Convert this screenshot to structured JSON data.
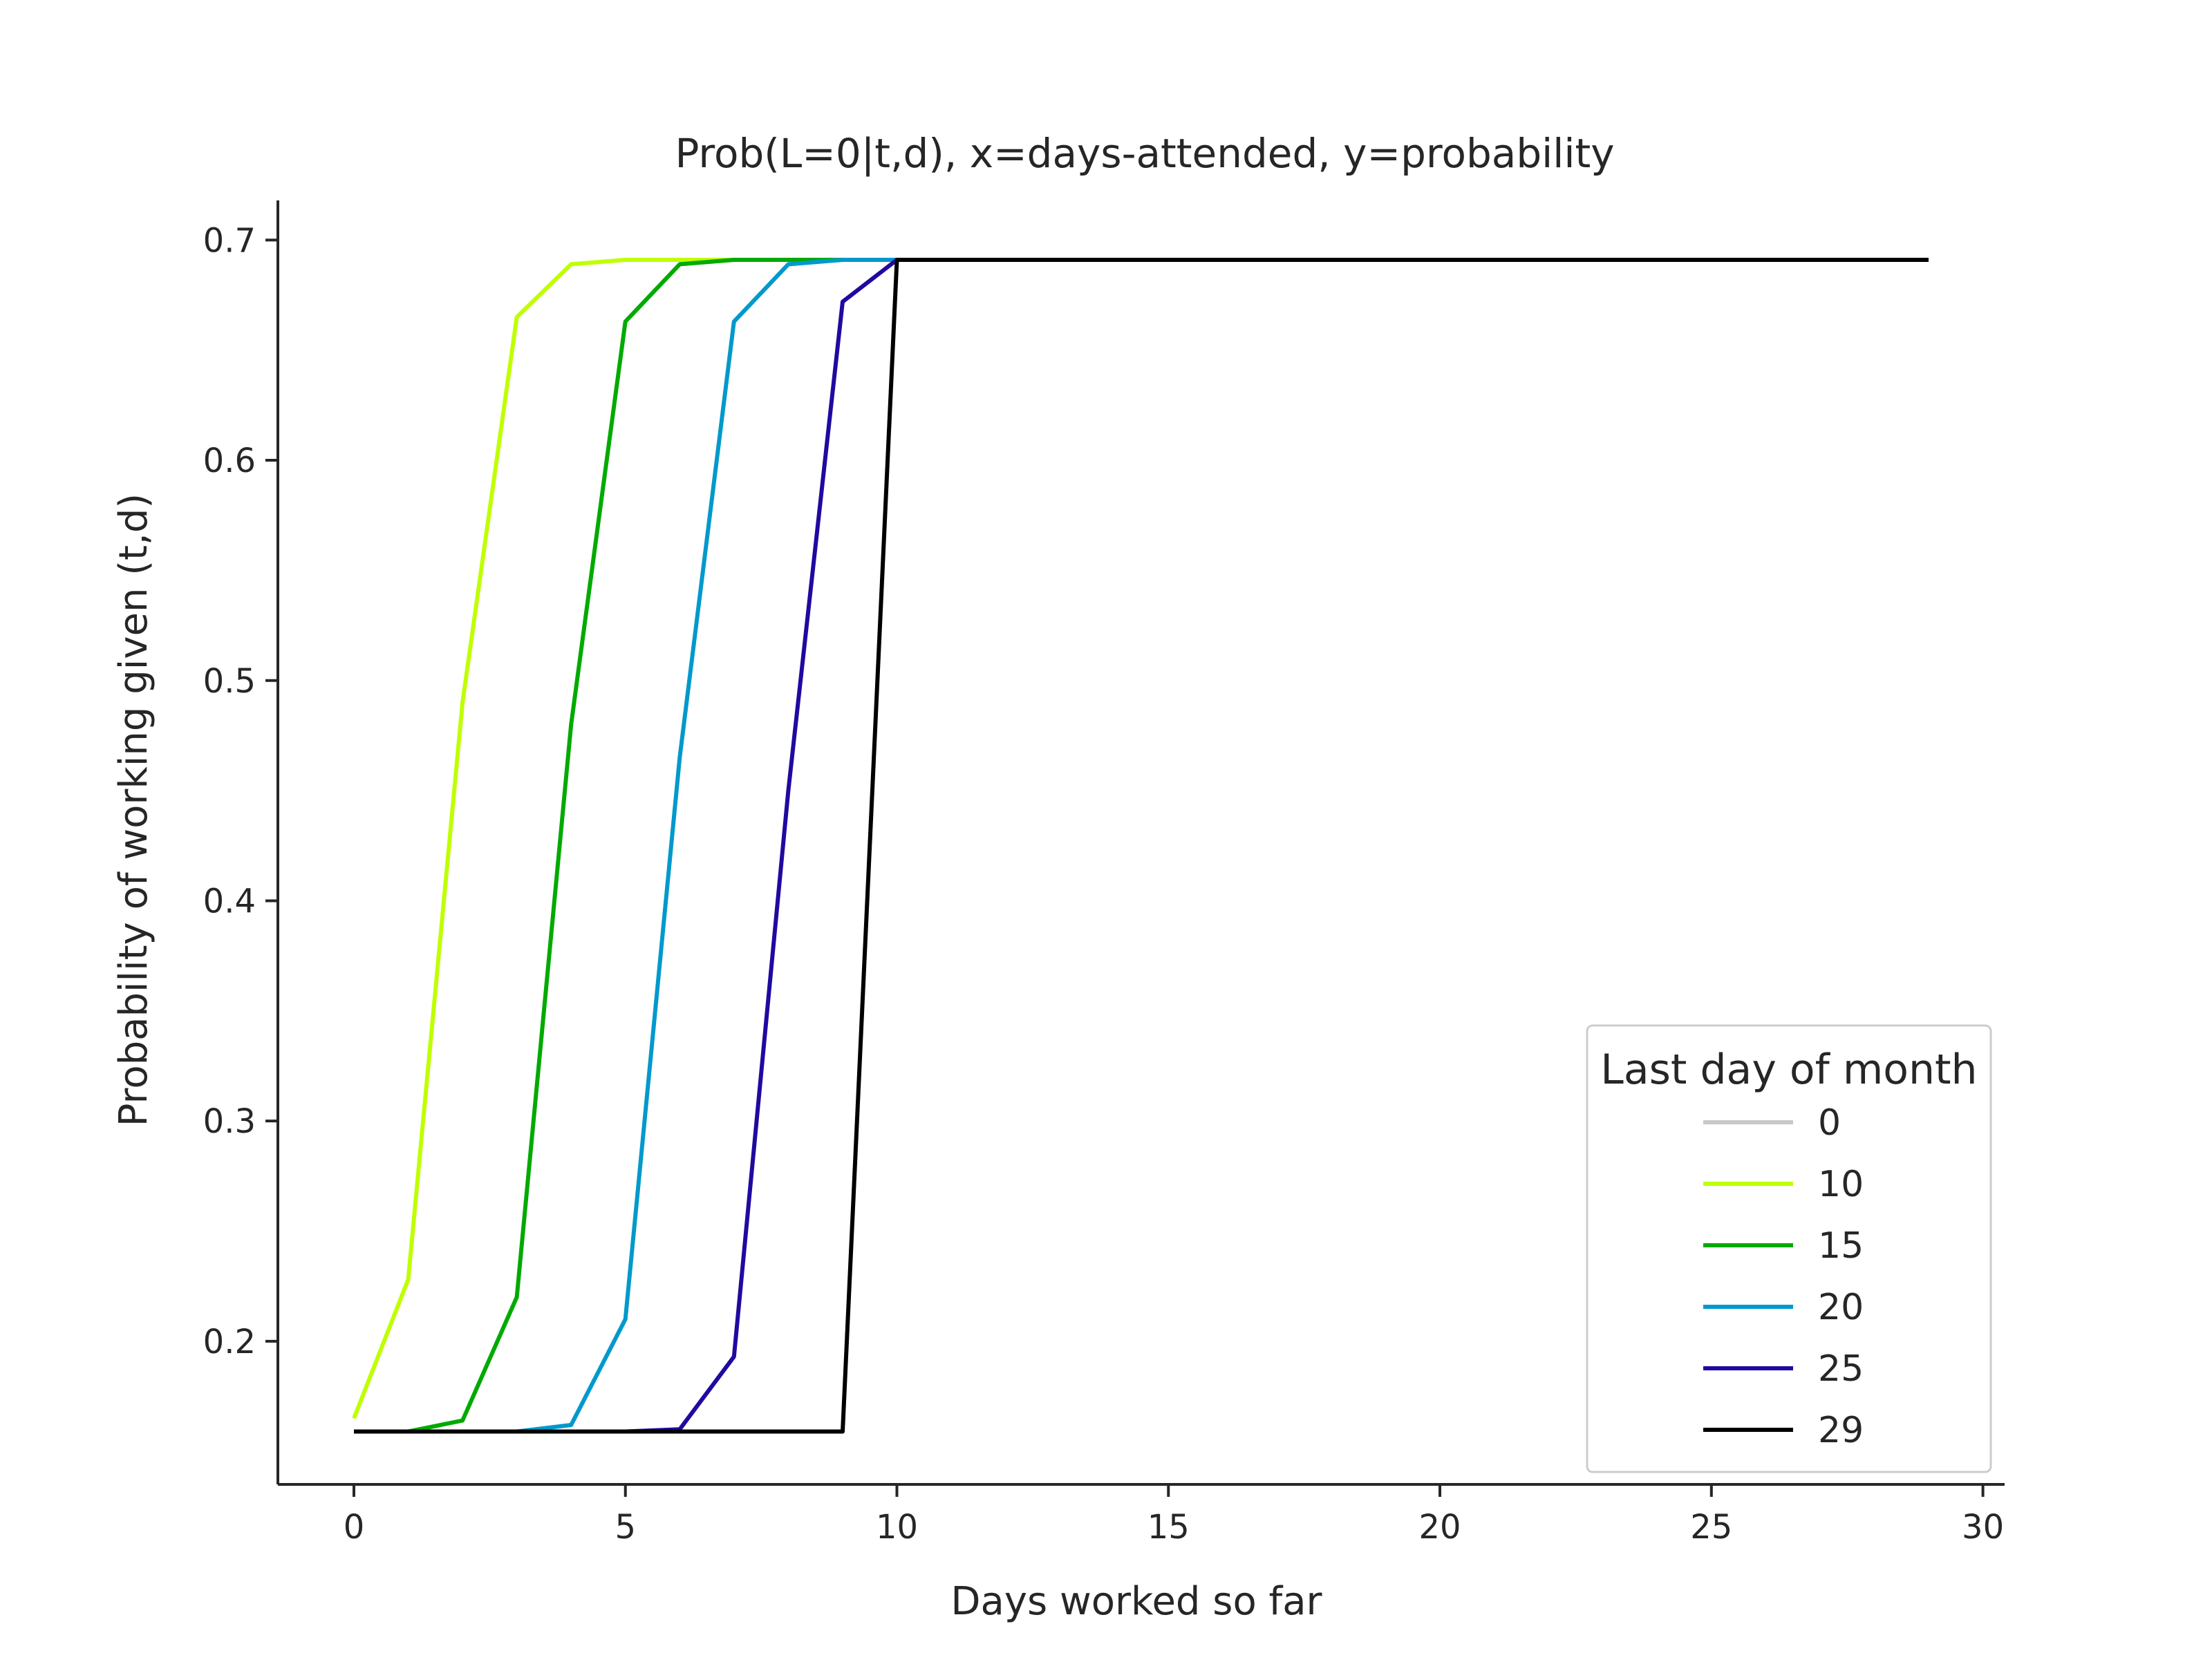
{
  "chart_data": {
    "type": "line",
    "title": "Prob(L=0|t,d), x=days-attended, y=probability",
    "xlabel": "Days worked so far",
    "ylabel": "Probability of working given (t,d)",
    "xlim": [
      -1.4,
      30.4
    ],
    "ylim": [
      0.135,
      0.718
    ],
    "xticks": [
      0,
      5,
      10,
      15,
      20,
      25,
      30
    ],
    "yticks": [
      0.2,
      0.3,
      0.4,
      0.5,
      0.6,
      0.7
    ],
    "xtick_labels": [
      "0",
      "5",
      "10",
      "15",
      "20",
      "25",
      "30"
    ],
    "ytick_labels": [
      "0.2",
      "0.3",
      "0.4",
      "0.5",
      "0.6",
      "0.7"
    ],
    "grid": false,
    "legend": {
      "title": "Last day of month",
      "placement": "bottom-right"
    },
    "series": [
      {
        "name": "0",
        "color": "#c8c8c8",
        "x": [],
        "y": []
      },
      {
        "name": "10",
        "color": "#bfff00",
        "x": [
          0,
          1,
          2,
          3,
          4,
          5,
          6,
          7,
          8,
          9,
          10,
          11,
          12,
          13,
          14,
          15,
          16,
          17,
          18,
          19,
          20,
          21,
          22,
          23,
          24,
          25,
          26,
          27,
          28,
          29
        ],
        "y": [
          0.165,
          0.228,
          0.49,
          0.665,
          0.689,
          0.691,
          0.691,
          0.691,
          0.691,
          0.691,
          0.691,
          0.691,
          0.691,
          0.691,
          0.691,
          0.691,
          0.691,
          0.691,
          0.691,
          0.691,
          0.691,
          0.691,
          0.691,
          0.691,
          0.691,
          0.691,
          0.691,
          0.691,
          0.691,
          0.691
        ]
      },
      {
        "name": "15",
        "color": "#00aa00",
        "x": [
          0,
          1,
          2,
          3,
          4,
          5,
          6,
          7,
          8,
          9,
          10,
          11,
          12,
          13,
          14,
          15,
          16,
          17,
          18,
          19,
          20,
          21,
          22,
          23,
          24,
          25,
          26,
          27,
          28,
          29
        ],
        "y": [
          0.159,
          0.159,
          0.164,
          0.22,
          0.48,
          0.663,
          0.689,
          0.691,
          0.691,
          0.691,
          0.691,
          0.691,
          0.691,
          0.691,
          0.691,
          0.691,
          0.691,
          0.691,
          0.691,
          0.691,
          0.691,
          0.691,
          0.691,
          0.691,
          0.691,
          0.691,
          0.691,
          0.691,
          0.691,
          0.691
        ]
      },
      {
        "name": "20",
        "color": "#0099cc",
        "x": [
          0,
          1,
          2,
          3,
          4,
          5,
          6,
          7,
          8,
          9,
          10,
          11,
          12,
          13,
          14,
          15,
          16,
          17,
          18,
          19,
          20,
          21,
          22,
          23,
          24,
          25,
          26,
          27,
          28,
          29
        ],
        "y": [
          0.159,
          0.159,
          0.159,
          0.159,
          0.162,
          0.21,
          0.465,
          0.663,
          0.689,
          0.691,
          0.691,
          0.691,
          0.691,
          0.691,
          0.691,
          0.691,
          0.691,
          0.691,
          0.691,
          0.691,
          0.691,
          0.691,
          0.691,
          0.691,
          0.691,
          0.691,
          0.691,
          0.691,
          0.691,
          0.691
        ]
      },
      {
        "name": "25",
        "color": "#1f0aa0",
        "x": [
          0,
          1,
          2,
          3,
          4,
          5,
          6,
          7,
          8,
          9,
          10,
          11,
          12,
          13,
          14,
          15,
          16,
          17,
          18,
          19,
          20,
          21,
          22,
          23,
          24,
          25,
          26,
          27,
          28,
          29
        ],
        "y": [
          0.159,
          0.159,
          0.159,
          0.159,
          0.159,
          0.159,
          0.16,
          0.193,
          0.45,
          0.672,
          0.691,
          0.691,
          0.691,
          0.691,
          0.691,
          0.691,
          0.691,
          0.691,
          0.691,
          0.691,
          0.691,
          0.691,
          0.691,
          0.691,
          0.691,
          0.691,
          0.691,
          0.691,
          0.691,
          0.691
        ]
      },
      {
        "name": "29",
        "color": "#000000",
        "x": [
          0,
          1,
          2,
          3,
          4,
          5,
          6,
          7,
          8,
          9,
          10,
          11,
          12,
          13,
          14,
          15,
          16,
          17,
          18,
          19,
          20,
          21,
          22,
          23,
          24,
          25,
          26,
          27,
          28,
          29
        ],
        "y": [
          0.159,
          0.159,
          0.159,
          0.159,
          0.159,
          0.159,
          0.159,
          0.159,
          0.159,
          0.159,
          0.691,
          0.691,
          0.691,
          0.691,
          0.691,
          0.691,
          0.691,
          0.691,
          0.691,
          0.691,
          0.691,
          0.691,
          0.691,
          0.691,
          0.691,
          0.691,
          0.691,
          0.691,
          0.691,
          0.691
        ]
      }
    ]
  }
}
